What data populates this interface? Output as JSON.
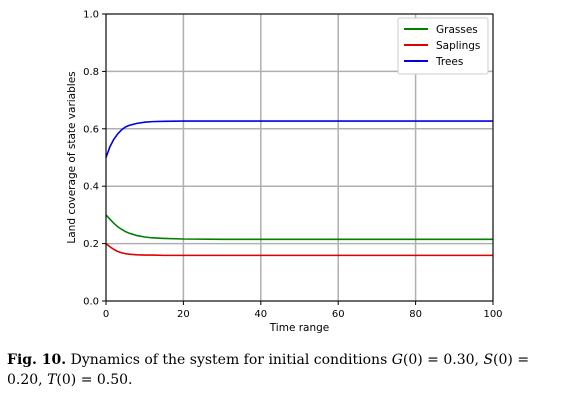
{
  "chart_data": {
    "type": "line",
    "title": "",
    "xlabel": "Time range",
    "ylabel": "Land coverage of state variables",
    "xlim": [
      0,
      100
    ],
    "ylim": [
      0,
      1.0
    ],
    "xticks": [
      0,
      20,
      40,
      60,
      80,
      100
    ],
    "xtick_labels": [
      "0",
      "20",
      "40",
      "60",
      "80",
      "100"
    ],
    "yticks": [
      0,
      0.2,
      0.4,
      0.6,
      0.8,
      1.0
    ],
    "ytick_labels": [
      "0.0",
      "0.2",
      "0.4",
      "0.6",
      "0.8",
      "1.0"
    ],
    "grid": true,
    "legend_position": "top-right",
    "series": [
      {
        "name": "Grasses",
        "color": "#008000",
        "x": [
          0,
          1,
          2,
          3,
          4,
          5,
          6,
          8,
          10,
          12,
          15,
          20,
          30,
          40,
          60,
          80,
          100
        ],
        "y": [
          0.3,
          0.285,
          0.271,
          0.259,
          0.25,
          0.242,
          0.236,
          0.228,
          0.223,
          0.22,
          0.218,
          0.216,
          0.215,
          0.215,
          0.215,
          0.215,
          0.215
        ]
      },
      {
        "name": "Saplings",
        "color": "#e00000",
        "x": [
          0,
          1,
          2,
          3,
          4,
          5,
          6,
          8,
          10,
          12,
          15,
          20,
          30,
          40,
          60,
          80,
          100
        ],
        "y": [
          0.2,
          0.189,
          0.18,
          0.173,
          0.168,
          0.165,
          0.163,
          0.161,
          0.16,
          0.16,
          0.159,
          0.159,
          0.159,
          0.159,
          0.159,
          0.159,
          0.159
        ]
      },
      {
        "name": "Trees",
        "color": "#0000e0",
        "x": [
          0,
          1,
          2,
          3,
          4,
          5,
          6,
          8,
          10,
          12,
          15,
          20,
          30,
          40,
          60,
          80,
          100
        ],
        "y": [
          0.5,
          0.537,
          0.563,
          0.582,
          0.596,
          0.606,
          0.612,
          0.619,
          0.623,
          0.625,
          0.626,
          0.627,
          0.627,
          0.627,
          0.627,
          0.627,
          0.627
        ]
      }
    ]
  },
  "caption": {
    "fig_label": "Fig. 10.",
    "text_before": " Dynamics of the system for initial conditions ",
    "g0": "G",
    "g0_rest": "(0) = 0.30, ",
    "s0": "S",
    "s0_rest": "(0) = 0.20, ",
    "t0": "T",
    "t0_rest": "(0) = 0.50."
  }
}
